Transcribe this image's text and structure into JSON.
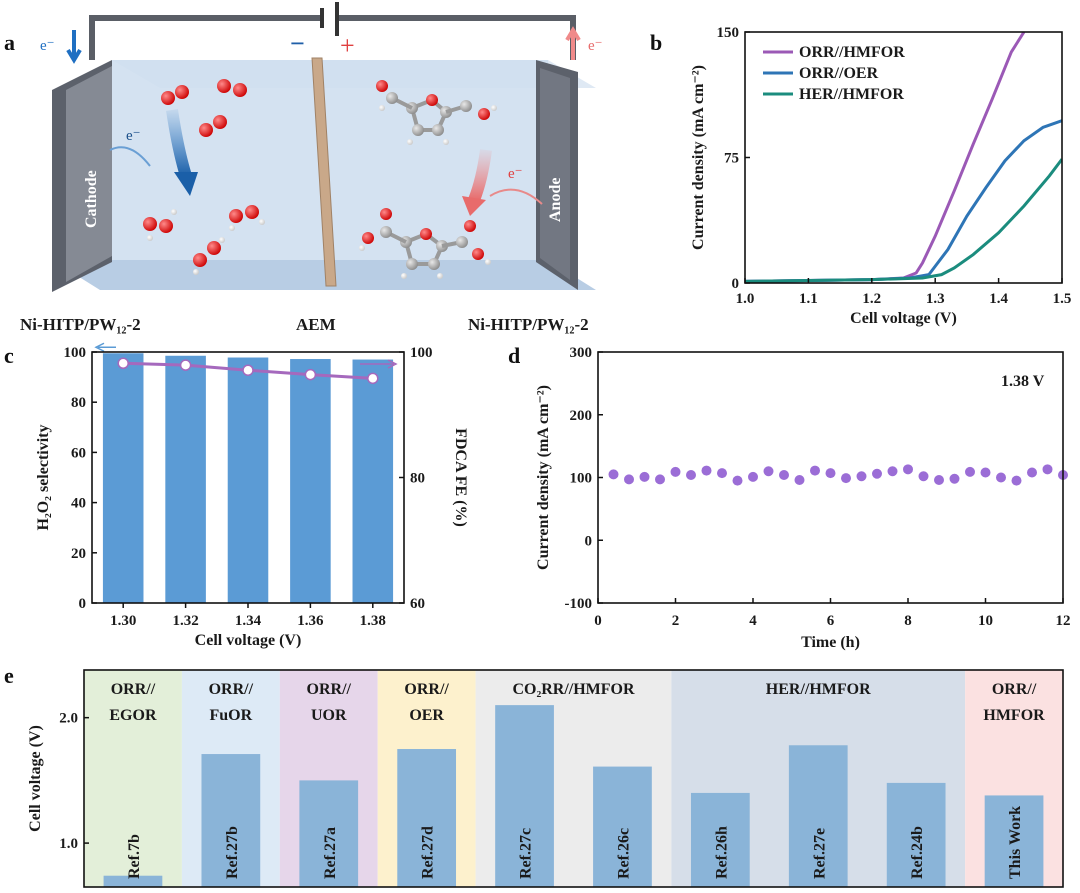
{
  "panel_letters": [
    "a",
    "b",
    "c",
    "d",
    "e"
  ],
  "panel_a": {
    "electron": "e⁻",
    "minus": "−",
    "plus": "+",
    "cathode": "Cathode",
    "anode": "Anode",
    "left_catalyst": "Ni-HITP/PW₁₂-2",
    "membrane": "AEM",
    "right_catalyst": "Ni-HITP/PW₁₂-2"
  },
  "chart_data": [
    {
      "id": "b",
      "type": "line",
      "xlabel": "Cell voltage (V)",
      "ylabel": "Current density (mA cm⁻²)",
      "xlim": [
        1.0,
        1.5
      ],
      "ylim": [
        0,
        150
      ],
      "xticks": [
        "1.0",
        "1.1",
        "1.2",
        "1.3",
        "1.4",
        "1.5"
      ],
      "yticks": [
        "0",
        "75",
        "150"
      ],
      "series": [
        {
          "name": "ORR//HMFOR",
          "color": "#9b59b6",
          "x": [
            1.0,
            1.1,
            1.2,
            1.25,
            1.27,
            1.28,
            1.3,
            1.33,
            1.36,
            1.39,
            1.42,
            1.44
          ],
          "y": [
            1,
            1.5,
            2,
            3,
            6,
            12,
            28,
            55,
            83,
            110,
            138,
            150
          ]
        },
        {
          "name": "ORR//OER",
          "color": "#2e75b6",
          "x": [
            1.0,
            1.1,
            1.2,
            1.26,
            1.29,
            1.3,
            1.32,
            1.35,
            1.38,
            1.41,
            1.44,
            1.47,
            1.5
          ],
          "y": [
            1,
            1.5,
            2,
            3,
            5,
            10,
            20,
            40,
            57,
            73,
            85,
            93,
            97
          ]
        },
        {
          "name": "HER//HMFOR",
          "color": "#1b8c7e",
          "x": [
            1.0,
            1.1,
            1.2,
            1.28,
            1.31,
            1.33,
            1.36,
            1.4,
            1.44,
            1.48,
            1.5
          ],
          "y": [
            1,
            1.5,
            2,
            3,
            5,
            9,
            17,
            30,
            46,
            64,
            74
          ]
        }
      ],
      "legend": "top-left"
    },
    {
      "id": "c",
      "type": "bar",
      "categories": [
        "1.30",
        "1.32",
        "1.34",
        "1.36",
        "1.38"
      ],
      "values": [
        99.5,
        98.5,
        97.8,
        97.2,
        97.0
      ],
      "xlabel": "Cell voltage (V)",
      "ylabel": "H₂O₂ selectivity",
      "ylim": [
        0,
        100
      ],
      "yticks": [
        "0",
        "20",
        "40",
        "60",
        "80",
        "100"
      ],
      "bar_color": "#5b9bd5",
      "secondary": {
        "ylabel": "FDCA FE (%)",
        "ylim": [
          60,
          100
        ],
        "yticks": [
          "60",
          "80",
          "100"
        ],
        "values": [
          98.2,
          97.9,
          97.1,
          96.4,
          95.8
        ],
        "color": "#a569bd"
      }
    },
    {
      "id": "d",
      "type": "scatter",
      "xlabel": "Time (h)",
      "ylabel": "Current density (mA cm⁻²)",
      "annotation": "1.38 V",
      "xlim": [
        0,
        12
      ],
      "ylim": [
        -100,
        300
      ],
      "xticks": [
        "0",
        "2",
        "4",
        "6",
        "8",
        "10",
        "12"
      ],
      "yticks": [
        "-100",
        "0",
        "100",
        "200",
        "300"
      ],
      "color": "#9b6dd6",
      "x": [
        0.4,
        0.8,
        1.2,
        1.6,
        2.0,
        2.4,
        2.8,
        3.2,
        3.6,
        4.0,
        4.4,
        4.8,
        5.2,
        5.6,
        6.0,
        6.4,
        6.8,
        7.2,
        7.6,
        8.0,
        8.4,
        8.8,
        9.2,
        9.6,
        10.0,
        10.4,
        10.8,
        11.2,
        11.6,
        12.0
      ],
      "y": [
        105,
        97,
        101,
        97,
        109,
        104,
        111,
        107,
        95,
        101,
        110,
        104,
        96,
        111,
        107,
        99,
        102,
        106,
        110,
        113,
        102,
        96,
        98,
        109,
        108,
        100,
        95,
        108,
        113,
        104
      ]
    },
    {
      "id": "e",
      "type": "bar",
      "ylabel": "Cell voltage (V)",
      "ylim": [
        0.65,
        2.38
      ],
      "yticks": [
        "1.0",
        "2.0"
      ],
      "groups": [
        {
          "label_lines": [
            "ORR//",
            "EGOR"
          ],
          "bg": "#e3efd9",
          "bars": [
            {
              "ref": "Ref.7b",
              "value": 0.74
            }
          ]
        },
        {
          "label_lines": [
            "ORR//",
            "FuOR"
          ],
          "bg": "#ddeaf6",
          "bars": [
            {
              "ref": "Ref.27b",
              "value": 1.71
            }
          ]
        },
        {
          "label_lines": [
            "ORR//",
            "UOR"
          ],
          "bg": "#e6d6ea",
          "bars": [
            {
              "ref": "Ref.27a",
              "value": 1.5
            }
          ]
        },
        {
          "label_lines": [
            "ORR//",
            "OER"
          ],
          "bg": "#fdf1cd",
          "bars": [
            {
              "ref": "Ref.27d",
              "value": 1.75
            }
          ]
        },
        {
          "label_lines": [
            "CO₂RR//HMFOR"
          ],
          "bg": "#ececec",
          "bars": [
            {
              "ref": "Ref.27c",
              "value": 2.1
            },
            {
              "ref": "Ref.26c",
              "value": 1.61
            }
          ]
        },
        {
          "label_lines": [
            "HER//HMFOR"
          ],
          "bg": "#d6dee9",
          "bars": [
            {
              "ref": "Ref.26h",
              "value": 1.4
            },
            {
              "ref": "Ref.27e",
              "value": 1.78
            },
            {
              "ref": "Ref.24b",
              "value": 1.48
            }
          ]
        },
        {
          "label_lines": [
            "ORR//",
            "HMFOR"
          ],
          "bg": "#fbe1e1",
          "bars": [
            {
              "ref": "This Work",
              "value": 1.38,
              "highlight": true
            }
          ]
        }
      ],
      "bar_color": "#8ab4d8",
      "highlight_color": "#e02020"
    }
  ]
}
